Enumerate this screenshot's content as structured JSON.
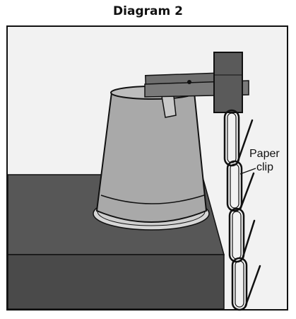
{
  "diagram": {
    "title": "Diagram 2",
    "labels": {
      "paper_clip_line1": "Paper",
      "paper_clip_line2": "clip"
    }
  },
  "colors": {
    "frame_fill": "#f2f2f2",
    "box_top": "#575757",
    "box_front": "#4a4a4a",
    "cup": "#a9a9a9",
    "cup_rim": "#bdbdbd",
    "clamp": "#6e6e6e",
    "stand_block": "#5a5a5a",
    "outline": "#111111"
  }
}
